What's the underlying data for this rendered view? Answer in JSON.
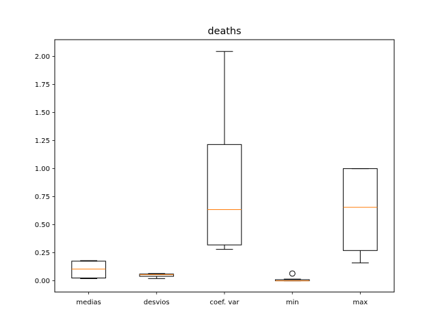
{
  "chart_data": {
    "type": "box",
    "title": "deaths",
    "xlabel": "",
    "ylabel": "",
    "categories": [
      "medias",
      "desvios",
      "coef. var",
      "min",
      "max"
    ],
    "ylim": [
      -0.1,
      2.15
    ],
    "yticks": [
      0.0,
      0.25,
      0.5,
      0.75,
      1.0,
      1.25,
      1.5,
      1.75,
      2.0
    ],
    "ytick_labels": [
      "0.00",
      "0.25",
      "0.50",
      "0.75",
      "1.00",
      "1.25",
      "1.50",
      "1.75",
      "2.00"
    ],
    "grid": false,
    "legend": "none",
    "colors": {
      "box": "#000000",
      "median": "#ff7f0e",
      "background": "#ffffff"
    },
    "boxes": [
      {
        "label": "medias",
        "whislo": 0.02,
        "q1": 0.025,
        "median": 0.105,
        "q3": 0.175,
        "whishi": 0.18,
        "fliers": []
      },
      {
        "label": "desvios",
        "whislo": 0.02,
        "q1": 0.04,
        "median": 0.055,
        "q3": 0.06,
        "whishi": 0.065,
        "fliers": []
      },
      {
        "label": "coef. var",
        "whislo": 0.28,
        "q1": 0.32,
        "median": 0.635,
        "q3": 1.215,
        "whishi": 2.045,
        "fliers": []
      },
      {
        "label": "min",
        "whislo": 0.0,
        "q1": 0.0,
        "median": 0.0,
        "q3": 0.01,
        "whishi": 0.015,
        "fliers": [
          0.065
        ]
      },
      {
        "label": "max",
        "whislo": 0.16,
        "q1": 0.27,
        "median": 0.655,
        "q3": 1.0,
        "whishi": 1.0,
        "fliers": []
      }
    ]
  }
}
